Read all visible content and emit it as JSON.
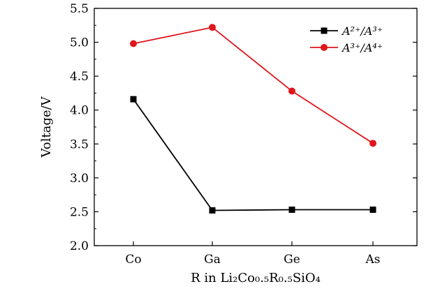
{
  "chart_data": {
    "type": "line",
    "categories": [
      "Co",
      "Ga",
      "Ge",
      "As"
    ],
    "ylim": [
      2.0,
      5.5
    ],
    "yticks": [
      "2.0",
      "2.5",
      "3.0",
      "3.5",
      "4.0",
      "4.5",
      "5.0",
      "5.5"
    ],
    "ylabel": "Voltage/V",
    "xlabel": "R in Li₂Co₀.₅R₀.₅SiO₄",
    "legend_position": "top-right",
    "series": [
      {
        "name": "A²⁺/A³⁺",
        "values": [
          4.16,
          2.52,
          2.53,
          2.53
        ],
        "color": "#000000",
        "marker": "square"
      },
      {
        "name": "A³⁺/A⁴⁺",
        "values": [
          4.98,
          5.22,
          4.28,
          3.51
        ],
        "color": "#e0161b",
        "marker": "circle"
      }
    ]
  }
}
